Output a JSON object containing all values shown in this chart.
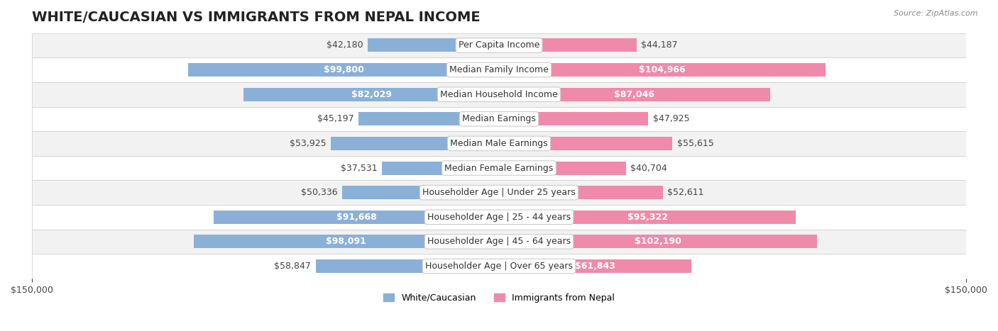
{
  "title": "WHITE/CAUCASIAN VS IMMIGRANTS FROM NEPAL INCOME",
  "source": "Source: ZipAtlas.com",
  "categories": [
    "Per Capita Income",
    "Median Family Income",
    "Median Household Income",
    "Median Earnings",
    "Median Male Earnings",
    "Median Female Earnings",
    "Householder Age | Under 25 years",
    "Householder Age | 25 - 44 years",
    "Householder Age | 45 - 64 years",
    "Householder Age | Over 65 years"
  ],
  "white_values": [
    42180,
    99800,
    82029,
    45197,
    53925,
    37531,
    50336,
    91668,
    98091,
    58847
  ],
  "nepal_values": [
    44187,
    104966,
    87046,
    47925,
    55615,
    40704,
    52611,
    95322,
    102190,
    61843
  ],
  "white_color": "#8ab0d8",
  "nepal_color": "#f08aaa",
  "white_label": "White/Caucasian",
  "nepal_label": "Immigrants from Nepal",
  "xlim": 150000,
  "bg_row_color": "#f2f2f2",
  "bg_alt_color": "#ffffff",
  "title_fontsize": 14,
  "label_fontsize": 9,
  "tick_fontsize": 9,
  "bar_height": 0.55,
  "value_inside_threshold": 60000
}
